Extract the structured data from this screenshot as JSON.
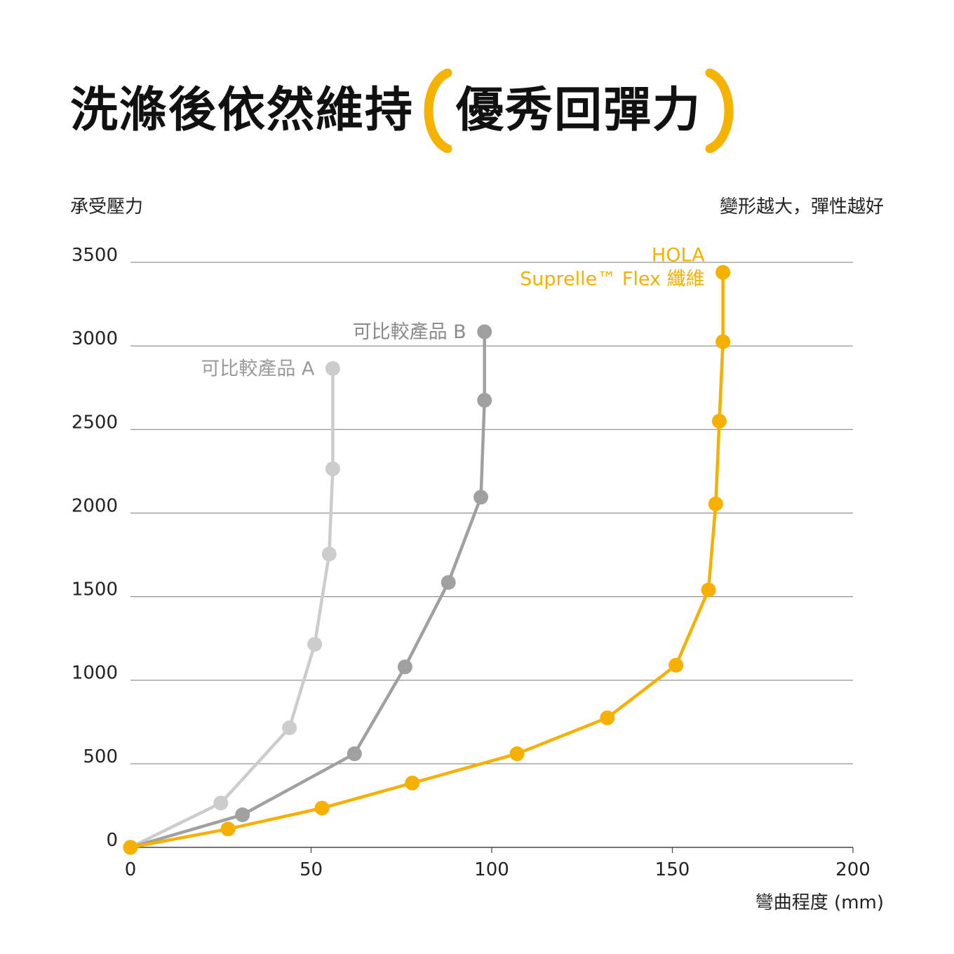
{
  "headline": {
    "main": "洗滌後依然維持",
    "emphasis": "優秀回彈力",
    "accent_color": "#F5B300"
  },
  "y_axis_caption": "承受壓力",
  "top_right_caption": "變形越大，彈性越好",
  "x_axis_caption": "彎曲程度 (mm)",
  "chart_data": {
    "type": "line",
    "title": "洗滌後依然維持 優秀回彈力",
    "xlabel": "彎曲程度 (mm)",
    "ylabel": "承受壓力",
    "xlim": [
      0,
      200
    ],
    "ylim": [
      0,
      3500
    ],
    "x_ticks": [
      0,
      50,
      100,
      150,
      200
    ],
    "y_ticks": [
      0,
      500,
      1000,
      1500,
      2000,
      2500,
      3000,
      3500
    ],
    "grid": "horizontal",
    "series": [
      {
        "name": "可比較產品 A",
        "label_lines": [
          "可比較產品 A"
        ],
        "color": "#CCCCCC",
        "x": [
          0,
          25,
          44,
          51,
          55,
          56,
          56
        ],
        "y": [
          0,
          265,
          715,
          1215,
          1755,
          2265,
          2865
        ]
      },
      {
        "name": "可比較產品 B",
        "label_lines": [
          "可比較產品 B"
        ],
        "color": "#A0A0A0",
        "x": [
          0,
          31,
          62,
          76,
          88,
          97,
          98,
          98
        ],
        "y": [
          0,
          195,
          560,
          1080,
          1585,
          2095,
          2675,
          3085
        ]
      },
      {
        "name": "HOLA Suprelle™ Flex 纖維",
        "label_lines": [
          "HOLA",
          "Suprelle™ Flex 纖維"
        ],
        "color": "#F5B000",
        "x": [
          0,
          27,
          53,
          78,
          107,
          132,
          151,
          160,
          162,
          163,
          164,
          164
        ],
        "y": [
          0,
          110,
          235,
          385,
          560,
          775,
          1090,
          1540,
          2055,
          2550,
          3025,
          3440
        ]
      }
    ]
  }
}
